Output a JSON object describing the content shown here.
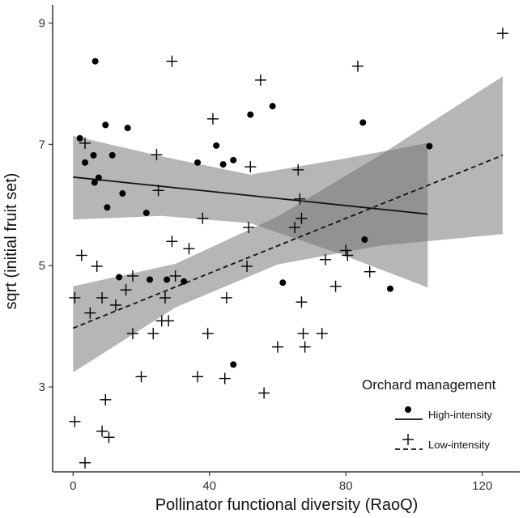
{
  "chart_data": {
    "type": "scatter",
    "xlabel": "Pollinator functional diversity (RaoQ)",
    "ylabel": "sqrt (initial fruit set)",
    "xlim": [
      -6,
      131
    ],
    "ylim": [
      1.6,
      9.3
    ],
    "x_ticks": [
      "0",
      "40",
      "80",
      "120"
    ],
    "x_tick_values": [
      0,
      40,
      80,
      120
    ],
    "y_ticks": [
      "3",
      "5",
      "7",
      "9"
    ],
    "y_tick_values": [
      3,
      5,
      7,
      9
    ],
    "grid": false,
    "legend": {
      "title": "Orchard management",
      "position": "bottom-right",
      "entries": [
        "High-intensity",
        "Low-intensity"
      ]
    },
    "series": [
      {
        "name": "High-intensity",
        "marker": "filled-circle",
        "line_style": "solid",
        "points": [
          [
            6.5,
            8.37
          ],
          [
            2,
            7.1
          ],
          [
            3.5,
            6.7
          ],
          [
            6,
            6.82
          ],
          [
            6.3,
            6.37
          ],
          [
            7.5,
            6.45
          ],
          [
            9.5,
            7.32
          ],
          [
            10,
            5.96
          ],
          [
            11.5,
            6.82
          ],
          [
            13.5,
            4.81
          ],
          [
            14.5,
            6.19
          ],
          [
            16,
            7.27
          ],
          [
            21.5,
            5.87
          ],
          [
            22.5,
            4.77
          ],
          [
            27.5,
            4.77
          ],
          [
            32.5,
            4.74
          ],
          [
            36.5,
            6.7
          ],
          [
            42,
            6.98
          ],
          [
            44,
            6.67
          ],
          [
            47,
            6.74
          ],
          [
            47,
            3.37
          ],
          [
            52,
            7.49
          ],
          [
            58.5,
            7.63
          ],
          [
            61.5,
            4.72
          ],
          [
            85,
            7.36
          ],
          [
            85.5,
            5.43
          ],
          [
            93,
            4.62
          ],
          [
            104.5,
            6.97
          ]
        ],
        "fit": {
          "x_range": [
            0,
            104
          ],
          "y_at_start": 6.46,
          "y_at_end": 5.85
        },
        "confidence_band": {
          "x": [
            0,
            26,
            52,
            78,
            104
          ],
          "lower": [
            5.76,
            5.82,
            5.7,
            5.2,
            4.64
          ],
          "upper": [
            7.14,
            6.8,
            6.5,
            6.75,
            7.02
          ]
        }
      },
      {
        "name": "Low-intensity",
        "marker": "plus",
        "line_style": "dashed",
        "points": [
          [
            0.5,
            2.43
          ],
          [
            0.5,
            4.47
          ],
          [
            2.5,
            5.17
          ],
          [
            3.5,
            7.02
          ],
          [
            3.5,
            1.75
          ],
          [
            5,
            4.22
          ],
          [
            7,
            4.99
          ],
          [
            8.5,
            2.27
          ],
          [
            8.5,
            4.47
          ],
          [
            9.5,
            2.79
          ],
          [
            10.5,
            2.17
          ],
          [
            12.5,
            4.35
          ],
          [
            15.5,
            4.6
          ],
          [
            17.5,
            4.83
          ],
          [
            17.5,
            3.88
          ],
          [
            20,
            3.17
          ],
          [
            23.5,
            3.88
          ],
          [
            24.5,
            6.83
          ],
          [
            25,
            6.24
          ],
          [
            26,
            4.09
          ],
          [
            27,
            4.47
          ],
          [
            28,
            4.09
          ],
          [
            29,
            5.4
          ],
          [
            29,
            8.37
          ],
          [
            30,
            4.83
          ],
          [
            34,
            5.28
          ],
          [
            36.5,
            3.17
          ],
          [
            38,
            5.78
          ],
          [
            39.5,
            3.88
          ],
          [
            41,
            7.42
          ],
          [
            44.5,
            3.14
          ],
          [
            45,
            4.47
          ],
          [
            51,
            4.99
          ],
          [
            51.5,
            5.63
          ],
          [
            52,
            6.63
          ],
          [
            55,
            8.06
          ],
          [
            56,
            2.9
          ],
          [
            60,
            3.66
          ],
          [
            65,
            5.63
          ],
          [
            66,
            6.58
          ],
          [
            66.5,
            6.1
          ],
          [
            67,
            5.78
          ],
          [
            67,
            4.4
          ],
          [
            67.5,
            3.88
          ],
          [
            68,
            3.66
          ],
          [
            73,
            3.88
          ],
          [
            74,
            5.1
          ],
          [
            77,
            4.66
          ],
          [
            80,
            5.25
          ],
          [
            80.5,
            5.17
          ],
          [
            83.5,
            8.29
          ],
          [
            87,
            4.9
          ],
          [
            126,
            8.83
          ]
        ],
        "fit": {
          "x_range": [
            0,
            126
          ],
          "y_at_start": 3.97,
          "y_at_end": 6.82
        },
        "confidence_band": {
          "x": [
            0,
            30,
            60,
            90,
            126
          ],
          "lower": [
            3.24,
            4.31,
            5.02,
            5.33,
            5.52
          ],
          "upper": [
            4.66,
            5.03,
            5.81,
            6.82,
            8.12
          ]
        }
      }
    ]
  }
}
